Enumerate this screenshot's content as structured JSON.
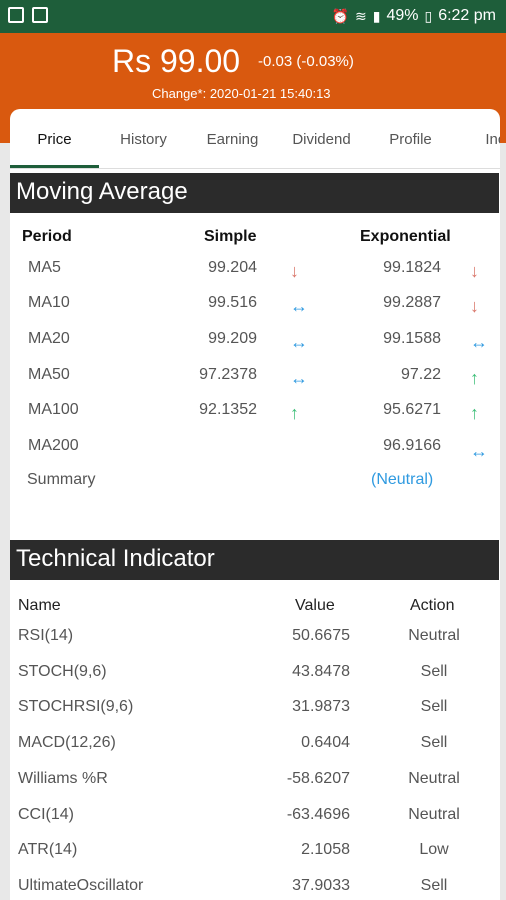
{
  "status_bar": {
    "battery": "49%",
    "time": "6:22 pm"
  },
  "header": {
    "price": "Rs 99.00",
    "change": "-0.03 (-0.03%)",
    "change_time": "Change*: 2020-01-21 15:40:13"
  },
  "tabs": [
    "Price",
    "History",
    "Earning",
    "Dividend",
    "Profile",
    "Inco"
  ],
  "moving_average": {
    "title": "Moving Average",
    "headers": {
      "period": "Period",
      "simple": "Simple",
      "exponential": "Exponential"
    },
    "rows": [
      {
        "period": "MA5",
        "simple": "99.204",
        "simple_trend": "down",
        "exponential": "99.1824",
        "exp_trend": "down"
      },
      {
        "period": "MA10",
        "simple": "99.516",
        "simple_trend": "neutral",
        "exponential": "99.2887",
        "exp_trend": "down"
      },
      {
        "period": "MA20",
        "simple": "99.209",
        "simple_trend": "neutral",
        "exponential": "99.1588",
        "exp_trend": "neutral"
      },
      {
        "period": "MA50",
        "simple": "97.2378",
        "simple_trend": "neutral",
        "exponential": "97.22",
        "exp_trend": "up"
      },
      {
        "period": "MA100",
        "simple": "92.1352",
        "simple_trend": "up",
        "exponential": "95.6271",
        "exp_trend": "up"
      },
      {
        "period": "MA200",
        "simple": "",
        "simple_trend": "",
        "exponential": "96.9166",
        "exp_trend": "neutral"
      }
    ],
    "summary_label": "Summary",
    "summary_value": "(Neutral)"
  },
  "technical_indicator": {
    "title": "Technical Indicator",
    "headers": {
      "name": "Name",
      "value": "Value",
      "action": "Action"
    },
    "rows": [
      {
        "name": "RSI(14)",
        "value": "50.6675",
        "action": "Neutral"
      },
      {
        "name": "STOCH(9,6)",
        "value": "43.8478",
        "action": "Sell"
      },
      {
        "name": "STOCHRSI(9,6)",
        "value": "31.9873",
        "action": "Sell"
      },
      {
        "name": "MACD(12,26)",
        "value": "0.6404",
        "action": "Sell"
      },
      {
        "name": "Williams %R",
        "value": "-58.6207",
        "action": "Neutral"
      },
      {
        "name": "CCI(14)",
        "value": "-63.4696",
        "action": "Neutral"
      },
      {
        "name": "ATR(14)",
        "value": "2.1058",
        "action": "Low"
      },
      {
        "name": "UltimateOscillator",
        "value": "37.9033",
        "action": "Sell"
      }
    ]
  }
}
